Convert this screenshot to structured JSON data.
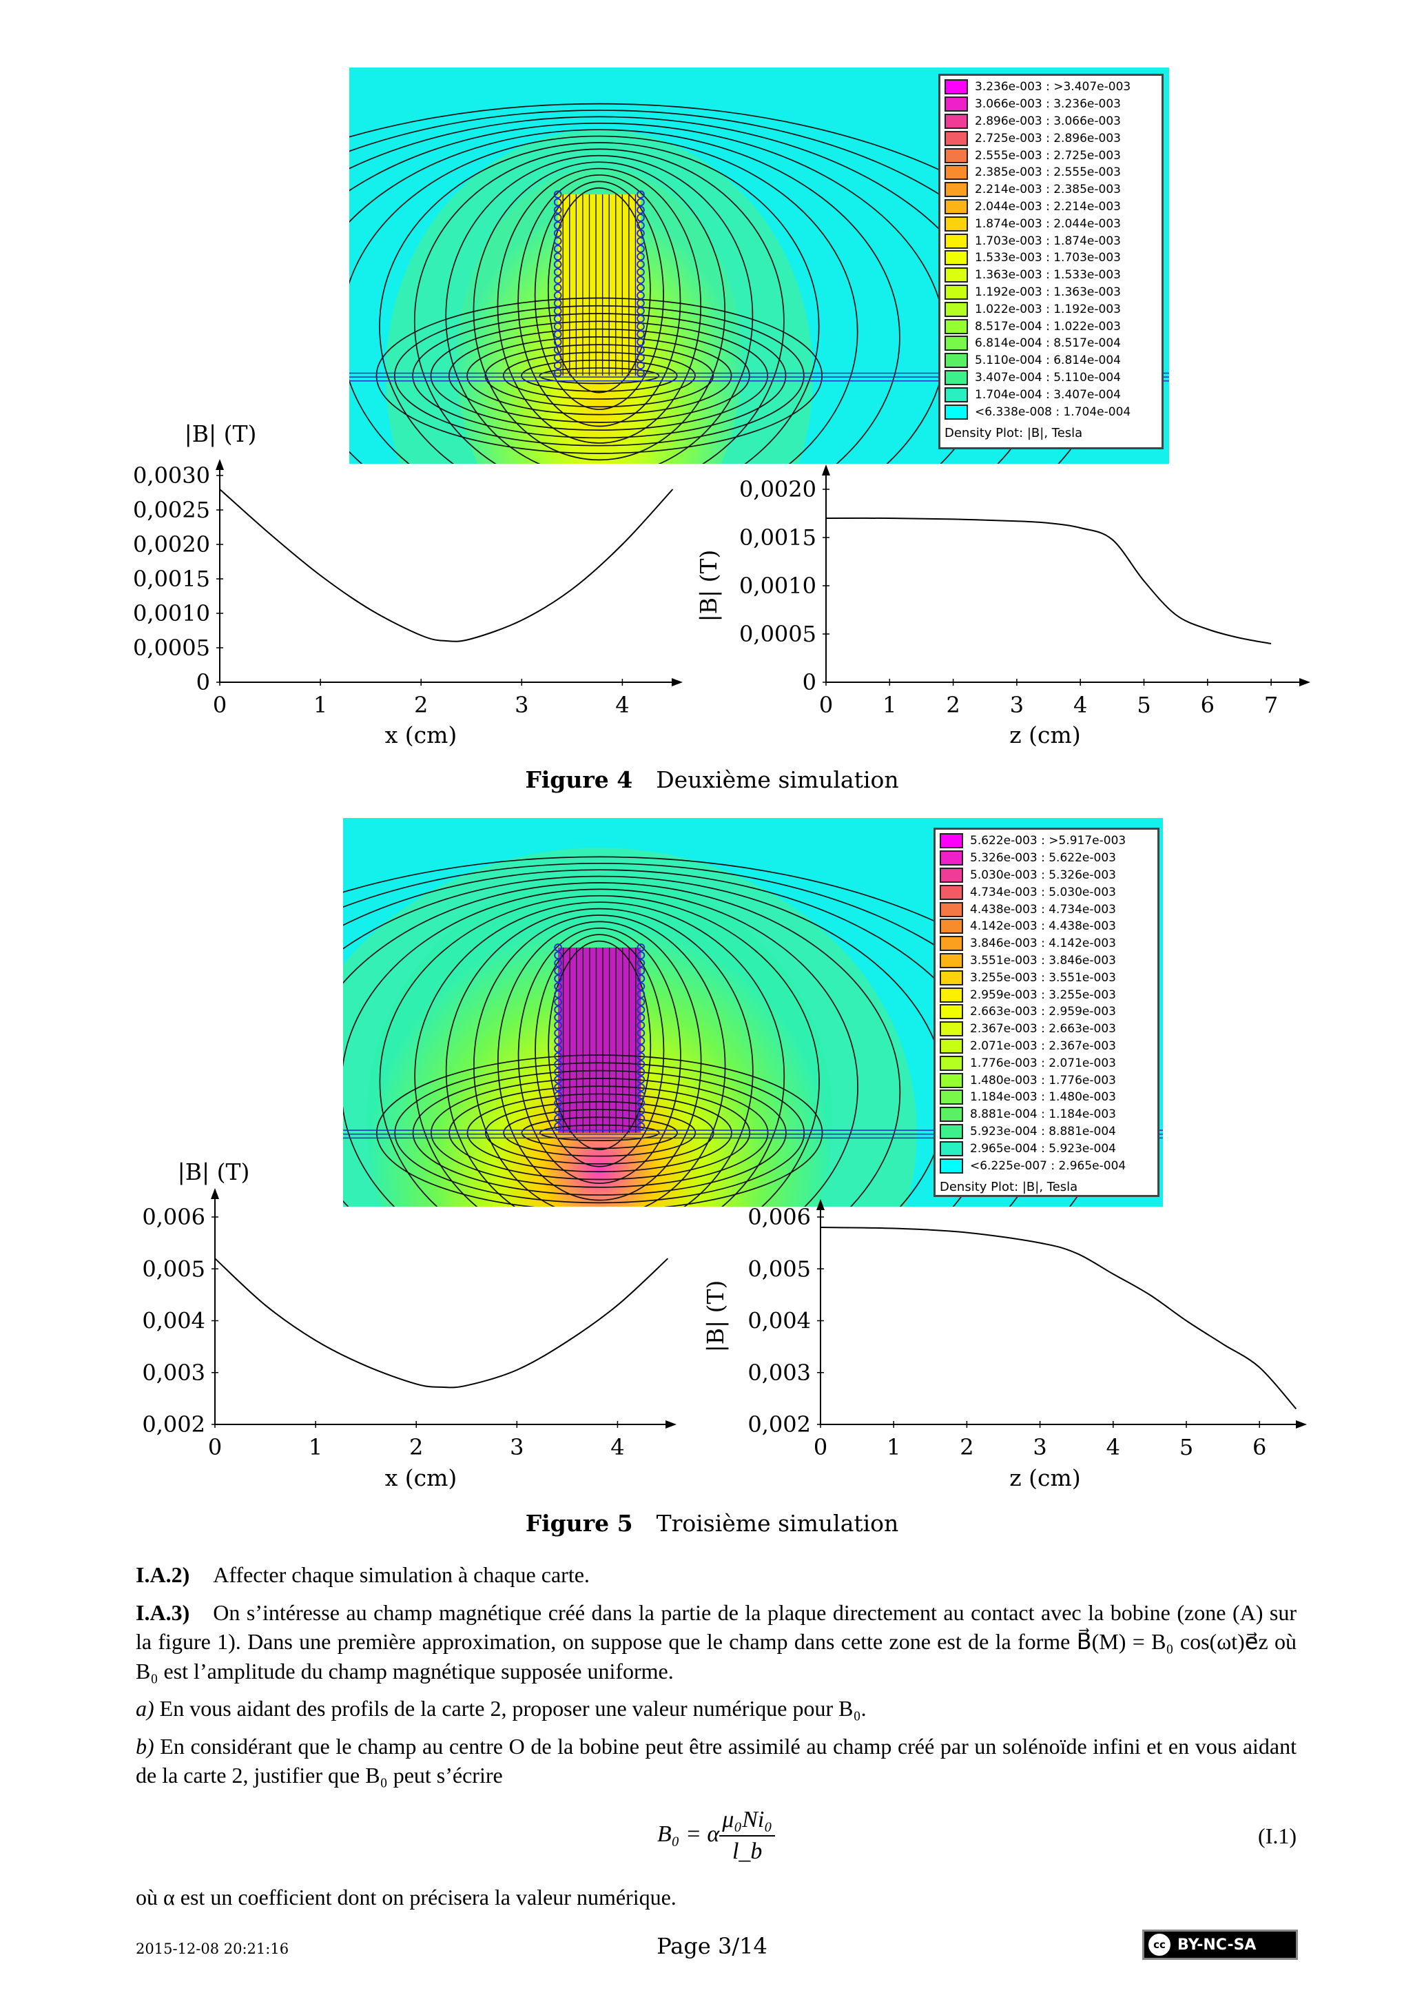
{
  "figure4": {
    "caption_num": "Figure 4",
    "caption_text": "Deuxième simulation",
    "legend": {
      "title": "Density Plot: |B|, Tesla",
      "rows": [
        "3.236e-003 : >3.407e-003",
        "3.066e-003 : 3.236e-003",
        "2.896e-003 : 3.066e-003",
        "2.725e-003 : 2.896e-003",
        "2.555e-003 : 2.725e-003",
        "2.385e-003 : 2.555e-003",
        "2.214e-003 : 2.385e-003",
        "2.044e-003 : 2.214e-003",
        "1.874e-003 : 2.044e-003",
        "1.703e-003 : 1.874e-003",
        "1.533e-003 : 1.703e-003",
        "1.363e-003 : 1.533e-003",
        "1.192e-003 : 1.363e-003",
        "1.022e-003 : 1.192e-003",
        "8.517e-004 : 1.022e-003",
        "6.814e-004 : 8.517e-004",
        "5.110e-004 : 6.814e-004",
        "3.407e-004 : 5.110e-004",
        "1.704e-004 : 3.407e-004",
        "<6.338e-008 : 1.704e-004"
      ]
    }
  },
  "figure5": {
    "caption_num": "Figure 5",
    "caption_text": "Troisième simulation",
    "legend": {
      "title": "Density Plot: |B|, Tesla",
      "rows": [
        "5.622e-003 : >5.917e-003",
        "5.326e-003 : 5.622e-003",
        "5.030e-003 : 5.326e-003",
        "4.734e-003 : 5.030e-003",
        "4.438e-003 : 4.734e-003",
        "4.142e-003 : 4.438e-003",
        "3.846e-003 : 4.142e-003",
        "3.551e-003 : 3.846e-003",
        "3.255e-003 : 3.551e-003",
        "2.959e-003 : 3.255e-003",
        "2.663e-003 : 2.959e-003",
        "2.367e-003 : 2.663e-003",
        "2.071e-003 : 2.367e-003",
        "1.776e-003 : 2.071e-003",
        "1.480e-003 : 1.776e-003",
        "1.184e-003 : 1.480e-003",
        "8.881e-004 : 1.184e-003",
        "5.923e-004 : 8.881e-004",
        "2.965e-004 : 5.923e-004",
        "<6.225e-007 : 2.965e-004"
      ]
    }
  },
  "legend_colors": [
    "#ff00ff",
    "#f020c8",
    "#f03c96",
    "#f25a64",
    "#f47846",
    "#f88c2c",
    "#fba01e",
    "#fcb414",
    "#fcd20a",
    "#fcf000",
    "#f0ff00",
    "#dcff10",
    "#c8ff10",
    "#b4ff20",
    "#96ff30",
    "#78f848",
    "#5af064",
    "#3cf08c",
    "#28f0c0",
    "#00ffff"
  ],
  "chart_data": [
    {
      "type": "line",
      "title": "",
      "xlabel": "x (cm)",
      "ylabel": "|B| (T)",
      "xlim": [
        0,
        4.5
      ],
      "ylim": [
        0,
        0.003
      ],
      "xticks": [
        0,
        1,
        2,
        3,
        4
      ],
      "xtick_labels": [
        "0",
        "1",
        "2",
        "3",
        "4"
      ],
      "yticks": [
        0,
        0.0005,
        0.001,
        0.0015,
        0.002,
        0.0025,
        0.003
      ],
      "ytick_labels": [
        "0",
        "0,0005",
        "0,0010",
        "0,0015",
        "0,0020",
        "0,0025",
        "0,0030"
      ],
      "x": [
        0,
        0.5,
        1,
        1.5,
        2,
        2.25,
        2.5,
        3,
        3.5,
        4,
        4.5
      ],
      "y": [
        0.0028,
        0.00215,
        0.00155,
        0.00105,
        0.00068,
        0.0006,
        0.00063,
        0.0009,
        0.00135,
        0.002,
        0.0028
      ]
    },
    {
      "type": "line",
      "title": "",
      "xlabel": "z (cm)",
      "ylabel": "|B| (T)",
      "xlim": [
        0,
        7
      ],
      "ylim": [
        0,
        0.002
      ],
      "xticks": [
        0,
        1,
        2,
        3,
        4,
        5,
        6,
        7
      ],
      "xtick_labels": [
        "0",
        "1",
        "2",
        "3",
        "4",
        "5",
        "6",
        "7"
      ],
      "yticks": [
        0,
        0.0005,
        0.001,
        0.0015,
        0.002
      ],
      "ytick_labels": [
        "0",
        "0,0005",
        "0,0010",
        "0,0015",
        "0,0020"
      ],
      "x": [
        0,
        1,
        2,
        3,
        3.5,
        4,
        4.5,
        5,
        5.5,
        6,
        6.5,
        7
      ],
      "y": [
        0.0017,
        0.0017,
        0.00169,
        0.00167,
        0.00165,
        0.0016,
        0.00148,
        0.00105,
        0.0007,
        0.00055,
        0.00046,
        0.0004
      ]
    },
    {
      "type": "line",
      "title": "",
      "xlabel": "x (cm)",
      "ylabel": "|B| (T)",
      "xlim": [
        0,
        4.5
      ],
      "ylim": [
        0.002,
        0.006
      ],
      "xticks": [
        0,
        1,
        2,
        3,
        4
      ],
      "xtick_labels": [
        "0",
        "1",
        "2",
        "3",
        "4"
      ],
      "yticks": [
        0.002,
        0.003,
        0.004,
        0.005,
        0.006
      ],
      "ytick_labels": [
        "0,002",
        "0,003",
        "0,004",
        "0,005",
        "0,006"
      ],
      "x": [
        0,
        0.5,
        1,
        1.5,
        2,
        2.25,
        2.5,
        3,
        3.5,
        4,
        4.5
      ],
      "y": [
        0.0052,
        0.0043,
        0.00362,
        0.00313,
        0.00278,
        0.00272,
        0.00275,
        0.00305,
        0.0036,
        0.0043,
        0.0052
      ]
    },
    {
      "type": "line",
      "title": "",
      "xlabel": "z (cm)",
      "ylabel": "|B| (T)",
      "xlim": [
        0,
        6.5
      ],
      "ylim": [
        0.002,
        0.006
      ],
      "xticks": [
        0,
        1,
        2,
        3,
        4,
        5,
        6
      ],
      "xtick_labels": [
        "0",
        "1",
        "2",
        "3",
        "4",
        "5",
        "6"
      ],
      "yticks": [
        0.002,
        0.003,
        0.004,
        0.005,
        0.006
      ],
      "ytick_labels": [
        "0,002",
        "0,003",
        "0,004",
        "0,005",
        "0,006"
      ],
      "x": [
        0,
        1,
        2,
        3,
        3.5,
        4,
        4.5,
        5,
        5.5,
        6,
        6.5
      ],
      "y": [
        0.0058,
        0.00578,
        0.0057,
        0.0055,
        0.0053,
        0.0049,
        0.0045,
        0.004,
        0.00355,
        0.0031,
        0.0023
      ]
    }
  ],
  "text": {
    "ia2_label": "I.A.2)",
    "ia2_text": "Affecter chaque simulation à chaque carte.",
    "ia3_label": "I.A.3)",
    "ia3_text": "On s’intéresse au champ magnétique créé dans la partie de la plaque directement au contact avec la bobine (zone (A) sur la figure 1). Dans une première approximation, on suppose que le champ dans cette zone est de la forme B⃗(M) = B₀ cos(ωt)e⃗z où B₀ est l’amplitude du champ magnétique supposée uniforme.",
    "qa_label": "a)",
    "qa_text": "En vous aidant des profils de la carte 2, proposer une valeur numérique pour B₀.",
    "qb_label": "b)",
    "qb_text": "En considérant que le champ au centre O de la bobine peut être assimilé au champ créé par un solénoïde infini et en vous aidant de la carte 2, justifier que B₀ peut s’écrire",
    "eq_lhs": "B₀ = α",
    "eq_num": "μ₀Ni₀",
    "eq_den": "l_b",
    "eq_tag": "(I.1)",
    "after_eq": "où α est un coefficient dont on précisera la valeur numérique."
  },
  "footer": {
    "timestamp": "2015-12-08 20:21:16",
    "page": "Page 3/14",
    "license": "BY-NC-SA",
    "license_icon": "cc"
  }
}
